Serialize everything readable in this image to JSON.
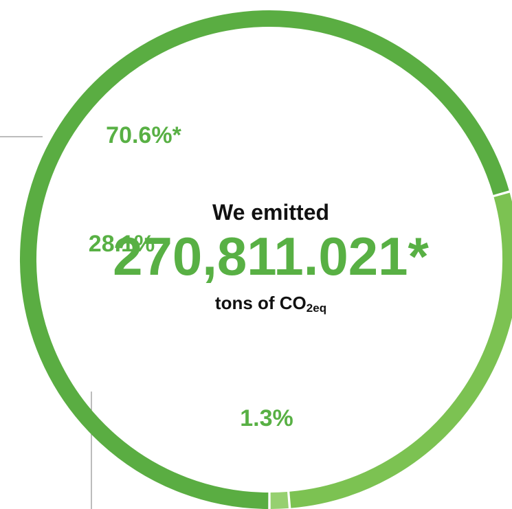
{
  "chart_data": {
    "type": "pie",
    "style": "ring",
    "values": [
      70.6,
      28.1,
      1.3
    ],
    "labels": [
      "70.6%*",
      "28.1%",
      "1.3%"
    ],
    "colors": [
      "#5aad42",
      "#7cc252",
      "#96d070"
    ],
    "center": {
      "line1": "We emitted",
      "value": "270,811.021*",
      "unit_prefix": "tons of CO",
      "unit_sub": "2eq"
    },
    "value_color": "#58b044"
  }
}
